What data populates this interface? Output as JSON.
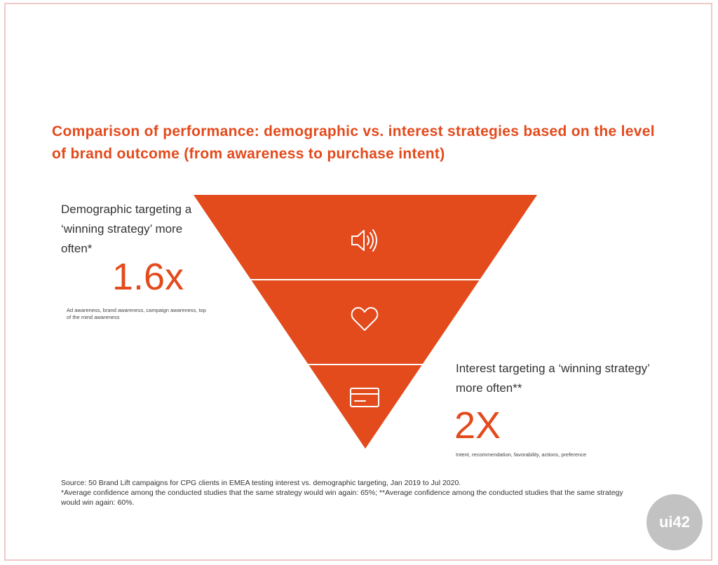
{
  "title": "Comparison of performance: demographic vs. interest strategies based on the level of brand outcome (from awareness to purchase intent)",
  "left": {
    "label": "Demographic targeting a ‘winning strategy’ more often*",
    "value": "1.6x",
    "note": "Ad awareness, brand awareness, campaign awareness, top of the mind awareness"
  },
  "right": {
    "label": "Interest targeting a ‘winning strategy’ more often**",
    "value": "2X",
    "note": "Intent, recommendation, favorability, actions, preference"
  },
  "funnel": {
    "color": "#e34a1c",
    "levels": [
      {
        "icon": "speaker-icon"
      },
      {
        "icon": "heart-icon"
      },
      {
        "icon": "credit-card-icon"
      }
    ]
  },
  "source": {
    "line1": "Source: 50 Brand Lift campaigns for CPG clients in EMEA testing interest vs. demographic targeting, Jan 2019 to Jul 2020.",
    "line2": "*Average confidence among the conducted studies that the same strategy would win again: 65%; **Average confidence among the conducted studies that the same strategy would win again: 60%."
  },
  "watermark": {
    "text": "ui42"
  }
}
